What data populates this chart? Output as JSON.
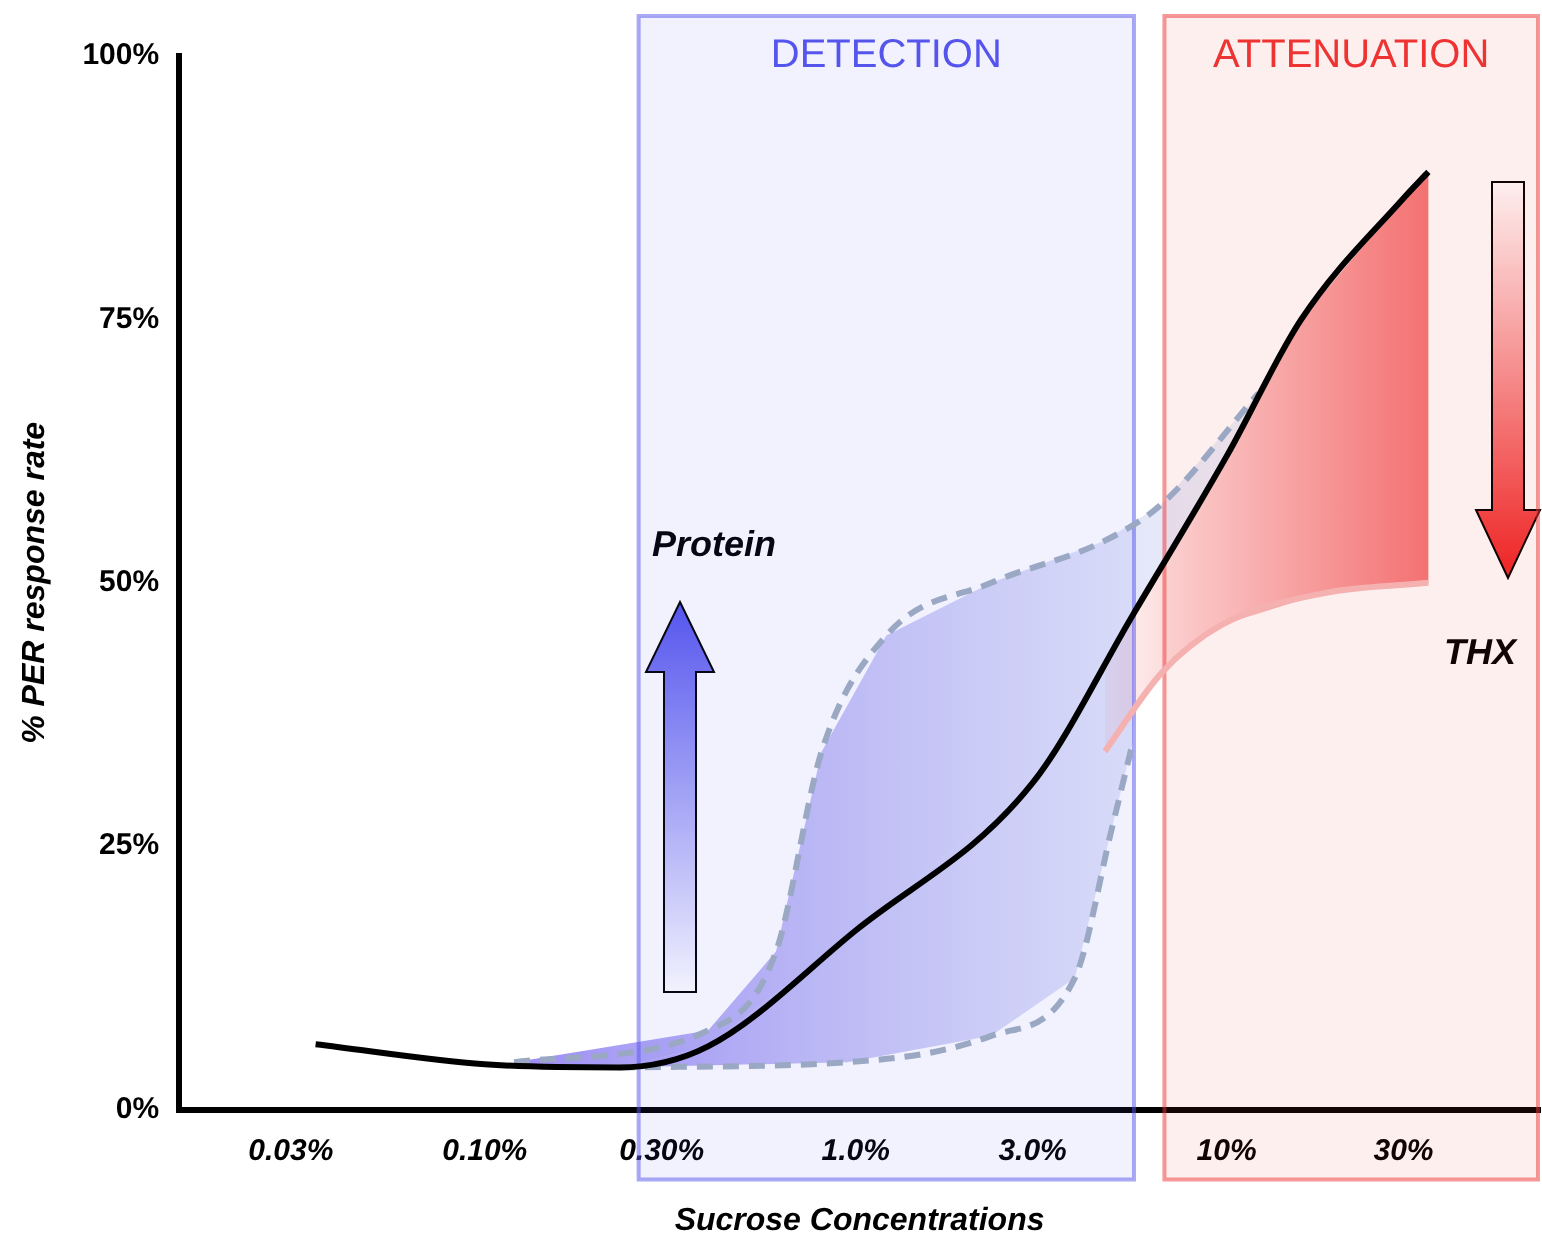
{
  "chart_data": {
    "type": "line",
    "xlabel": "Sucrose Concentrations",
    "ylabel": "% PER response rate",
    "log": "x",
    "xlim": [
      0.015,
      70
    ],
    "xticks": [
      {
        "value": 0.03,
        "label": "0.03%"
      },
      {
        "value": 0.1,
        "label": "0.10%"
      },
      {
        "value": 0.3,
        "label": "0.30%"
      },
      {
        "value": 1,
        "label": "1.0%"
      },
      {
        "value": 3,
        "label": "3.0%"
      },
      {
        "value": 10,
        "label": "10%"
      },
      {
        "value": 30,
        "label": "30%"
      }
    ],
    "ylim": [
      0,
      100
    ],
    "yticks": [
      {
        "value": 0,
        "label": "0%"
      },
      {
        "value": 25,
        "label": "25%"
      },
      {
        "value": 50,
        "label": "50%"
      },
      {
        "value": 75,
        "label": "75%"
      },
      {
        "value": 100,
        "label": "100%"
      }
    ],
    "grid": false,
    "legend": false,
    "marker": "none",
    "series": [
      {
        "color": "#000000",
        "line_style": "solid",
        "x": [
          0.035,
          0.1,
          0.23,
          0.4,
          1,
          3,
          5.6,
          10,
          15.9,
          30,
          35
        ],
        "values": [
          6.2,
          4.3,
          4,
          6,
          17,
          31,
          47,
          62,
          75,
          86.5,
          89
        ]
      },
      {
        "color": "#9aa8c4",
        "line_style": "dashed",
        "x": [
          0.12,
          0.4,
          0.61,
          0.81,
          1.21,
          2.32,
          4.7,
          6.7,
          12.2
        ],
        "values": [
          4.5,
          7.5,
          15,
          34,
          45,
          50,
          54,
          57.5,
          68
        ]
      },
      {
        "color": "#9aa8c4",
        "line_style": "dashed",
        "x": [
          0.23,
          0.95,
          2.32,
          3.9,
          4.9,
          5.6
        ],
        "values": [
          4,
          4.5,
          7,
          12.5,
          26.6,
          35
        ]
      },
      {
        "color": "#f5b0b0",
        "line_style": "solid",
        "x": [
          4.7,
          6.7,
          9.7,
          18.2,
          35
        ],
        "values": [
          34,
          41.5,
          46,
          49,
          50
        ]
      }
    ],
    "bands": [
      {
        "axis": "x",
        "from": 0.26,
        "to": 5.7,
        "label": "DETECTION",
        "color": "#5555ee"
      },
      {
        "axis": "x",
        "from": 6.8,
        "to": 70,
        "label": "ATTENUATION",
        "color": "#ee3333"
      }
    ],
    "annotations": [
      "Protein",
      "THX"
    ]
  }
}
